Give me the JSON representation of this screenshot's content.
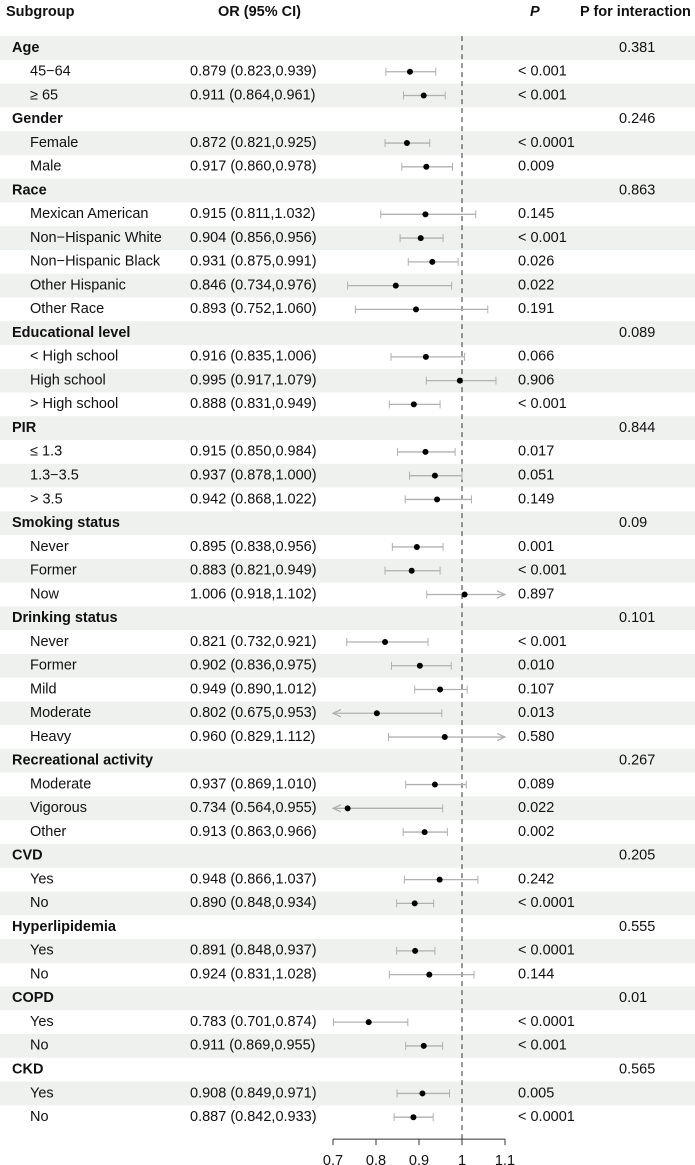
{
  "chart_data": {
    "type": "forest",
    "headers": {
      "subgroup": "Subgroup",
      "or": "OR (95% CI)",
      "p": "P",
      "p_interaction": "P for interaction"
    },
    "xlim": [
      0.7,
      1.1
    ],
    "xticks": [
      0.7,
      0.8,
      0.9,
      1,
      1.1
    ],
    "ref_line": 1,
    "point_color": "#000000",
    "ci_color": "#b0b0b0",
    "band_color": "#eef1ee",
    "rows": [
      {
        "label": "Age",
        "p_interaction": 0.381
      },
      {
        "label": "45−64",
        "ci_text": "0.879 (0.823,0.939)",
        "or": 0.879,
        "lower": 0.823,
        "upper": 0.939,
        "p": "< 0.001"
      },
      {
        "label": "≥ 65",
        "ci_text": "0.911 (0.864,0.961)",
        "or": 0.911,
        "lower": 0.864,
        "upper": 0.961,
        "p": "< 0.001"
      },
      {
        "label": "Gender",
        "p_interaction": 0.246
      },
      {
        "label": "Female",
        "ci_text": "0.872 (0.821,0.925)",
        "or": 0.872,
        "lower": 0.821,
        "upper": 0.925,
        "p": "< 0.0001"
      },
      {
        "label": "Male",
        "ci_text": "0.917 (0.860,0.978)",
        "or": 0.917,
        "lower": 0.86,
        "upper": 0.978,
        "p": "0.009"
      },
      {
        "label": "Race",
        "p_interaction": 0.863
      },
      {
        "label": "Mexican American",
        "ci_text": "0.915 (0.811,1.032)",
        "or": 0.915,
        "lower": 0.811,
        "upper": 1.032,
        "p": "0.145"
      },
      {
        "label": "Non−Hispanic White",
        "ci_text": "0.904 (0.856,0.956)",
        "or": 0.904,
        "lower": 0.856,
        "upper": 0.956,
        "p": "< 0.001"
      },
      {
        "label": "Non−Hispanic Black",
        "ci_text": "0.931 (0.875,0.991)",
        "or": 0.931,
        "lower": 0.875,
        "upper": 0.991,
        "p": "0.026"
      },
      {
        "label": "Other Hispanic",
        "ci_text": "0.846 (0.734,0.976)",
        "or": 0.846,
        "lower": 0.734,
        "upper": 0.976,
        "p": "0.022"
      },
      {
        "label": "Other Race",
        "ci_text": "0.893 (0.752,1.060)",
        "or": 0.893,
        "lower": 0.752,
        "upper": 1.06,
        "p": "0.191"
      },
      {
        "label": "Educational level",
        "p_interaction": 0.089
      },
      {
        "label": "< High school",
        "ci_text": "0.916 (0.835,1.006)",
        "or": 0.916,
        "lower": 0.835,
        "upper": 1.006,
        "p": "0.066"
      },
      {
        "label": "High school",
        "ci_text": "0.995 (0.917,1.079)",
        "or": 0.995,
        "lower": 0.917,
        "upper": 1.079,
        "p": "0.906"
      },
      {
        "label": "> High school",
        "ci_text": "0.888 (0.831,0.949)",
        "or": 0.888,
        "lower": 0.831,
        "upper": 0.949,
        "p": "< 0.001"
      },
      {
        "label": "PIR",
        "p_interaction": 0.844
      },
      {
        "label": "≤ 1.3",
        "ci_text": "0.915 (0.850,0.984)",
        "or": 0.915,
        "lower": 0.85,
        "upper": 0.984,
        "p": "0.017"
      },
      {
        "label": "1.3−3.5",
        "ci_text": "0.937 (0.878,1.000)",
        "or": 0.937,
        "lower": 0.878,
        "upper": 1.0,
        "p": "0.051"
      },
      {
        "label": "> 3.5",
        "ci_text": "0.942 (0.868,1.022)",
        "or": 0.942,
        "lower": 0.868,
        "upper": 1.022,
        "p": "0.149"
      },
      {
        "label": "Smoking status",
        "p_interaction": 0.09
      },
      {
        "label": "Never",
        "ci_text": "0.895 (0.838,0.956)",
        "or": 0.895,
        "lower": 0.838,
        "upper": 0.956,
        "p": "0.001"
      },
      {
        "label": "Former",
        "ci_text": "0.883 (0.821,0.949)",
        "or": 0.883,
        "lower": 0.821,
        "upper": 0.949,
        "p": "< 0.001"
      },
      {
        "label": "Now",
        "ci_text": "1.006 (0.918,1.102)",
        "or": 1.006,
        "lower": 0.918,
        "upper": 1.102,
        "p": "0.897"
      },
      {
        "label": "Drinking status",
        "p_interaction": 0.101
      },
      {
        "label": "Never",
        "ci_text": "0.821 (0.732,0.921)",
        "or": 0.821,
        "lower": 0.732,
        "upper": 0.921,
        "p": "< 0.001"
      },
      {
        "label": "Former",
        "ci_text": "0.902 (0.836,0.975)",
        "or": 0.902,
        "lower": 0.836,
        "upper": 0.975,
        "p": "0.010"
      },
      {
        "label": "Mild",
        "ci_text": "0.949 (0.890,1.012)",
        "or": 0.949,
        "lower": 0.89,
        "upper": 1.012,
        "p": "0.107"
      },
      {
        "label": "Moderate",
        "ci_text": "0.802 (0.675,0.953)",
        "or": 0.802,
        "lower": 0.675,
        "upper": 0.953,
        "p": "0.013"
      },
      {
        "label": "Heavy",
        "ci_text": "0.960 (0.829,1.112)",
        "or": 0.96,
        "lower": 0.829,
        "upper": 1.112,
        "p": "0.580"
      },
      {
        "label": "Recreational activity",
        "p_interaction": 0.267
      },
      {
        "label": "Moderate",
        "ci_text": "0.937 (0.869,1.010)",
        "or": 0.937,
        "lower": 0.869,
        "upper": 1.01,
        "p": "0.089"
      },
      {
        "label": "Vigorous",
        "ci_text": "0.734 (0.564,0.955)",
        "or": 0.734,
        "lower": 0.564,
        "upper": 0.955,
        "p": "0.022"
      },
      {
        "label": "Other",
        "ci_text": "0.913 (0.863,0.966)",
        "or": 0.913,
        "lower": 0.863,
        "upper": 0.966,
        "p": "0.002"
      },
      {
        "label": "CVD",
        "p_interaction": 0.205
      },
      {
        "label": "Yes",
        "ci_text": "0.948 (0.866,1.037)",
        "or": 0.948,
        "lower": 0.866,
        "upper": 1.037,
        "p": "0.242"
      },
      {
        "label": "No",
        "ci_text": "0.890 (0.848,0.934)",
        "or": 0.89,
        "lower": 0.848,
        "upper": 0.934,
        "p": "< 0.0001"
      },
      {
        "label": "Hyperlipidemia",
        "p_interaction": 0.555
      },
      {
        "label": "Yes",
        "ci_text": "0.891 (0.848,0.937)",
        "or": 0.891,
        "lower": 0.848,
        "upper": 0.937,
        "p": "< 0.0001"
      },
      {
        "label": "No",
        "ci_text": "0.924 (0.831,1.028)",
        "or": 0.924,
        "lower": 0.831,
        "upper": 1.028,
        "p": "0.144"
      },
      {
        "label": "COPD",
        "p_interaction": 0.01
      },
      {
        "label": "Yes",
        "ci_text": "0.783 (0.701,0.874)",
        "or": 0.783,
        "lower": 0.701,
        "upper": 0.874,
        "p": "< 0.0001"
      },
      {
        "label": "No",
        "ci_text": "0.911 (0.869,0.955)",
        "or": 0.911,
        "lower": 0.869,
        "upper": 0.955,
        "p": "< 0.001"
      },
      {
        "label": "CKD",
        "p_interaction": 0.565
      },
      {
        "label": "Yes",
        "ci_text": "0.908 (0.849,0.971)",
        "or": 0.908,
        "lower": 0.849,
        "upper": 0.971,
        "p": "0.005"
      },
      {
        "label": "No",
        "ci_text": "0.887 (0.842,0.933)",
        "or": 0.887,
        "lower": 0.842,
        "upper": 0.933,
        "p": "< 0.0001"
      }
    ]
  }
}
